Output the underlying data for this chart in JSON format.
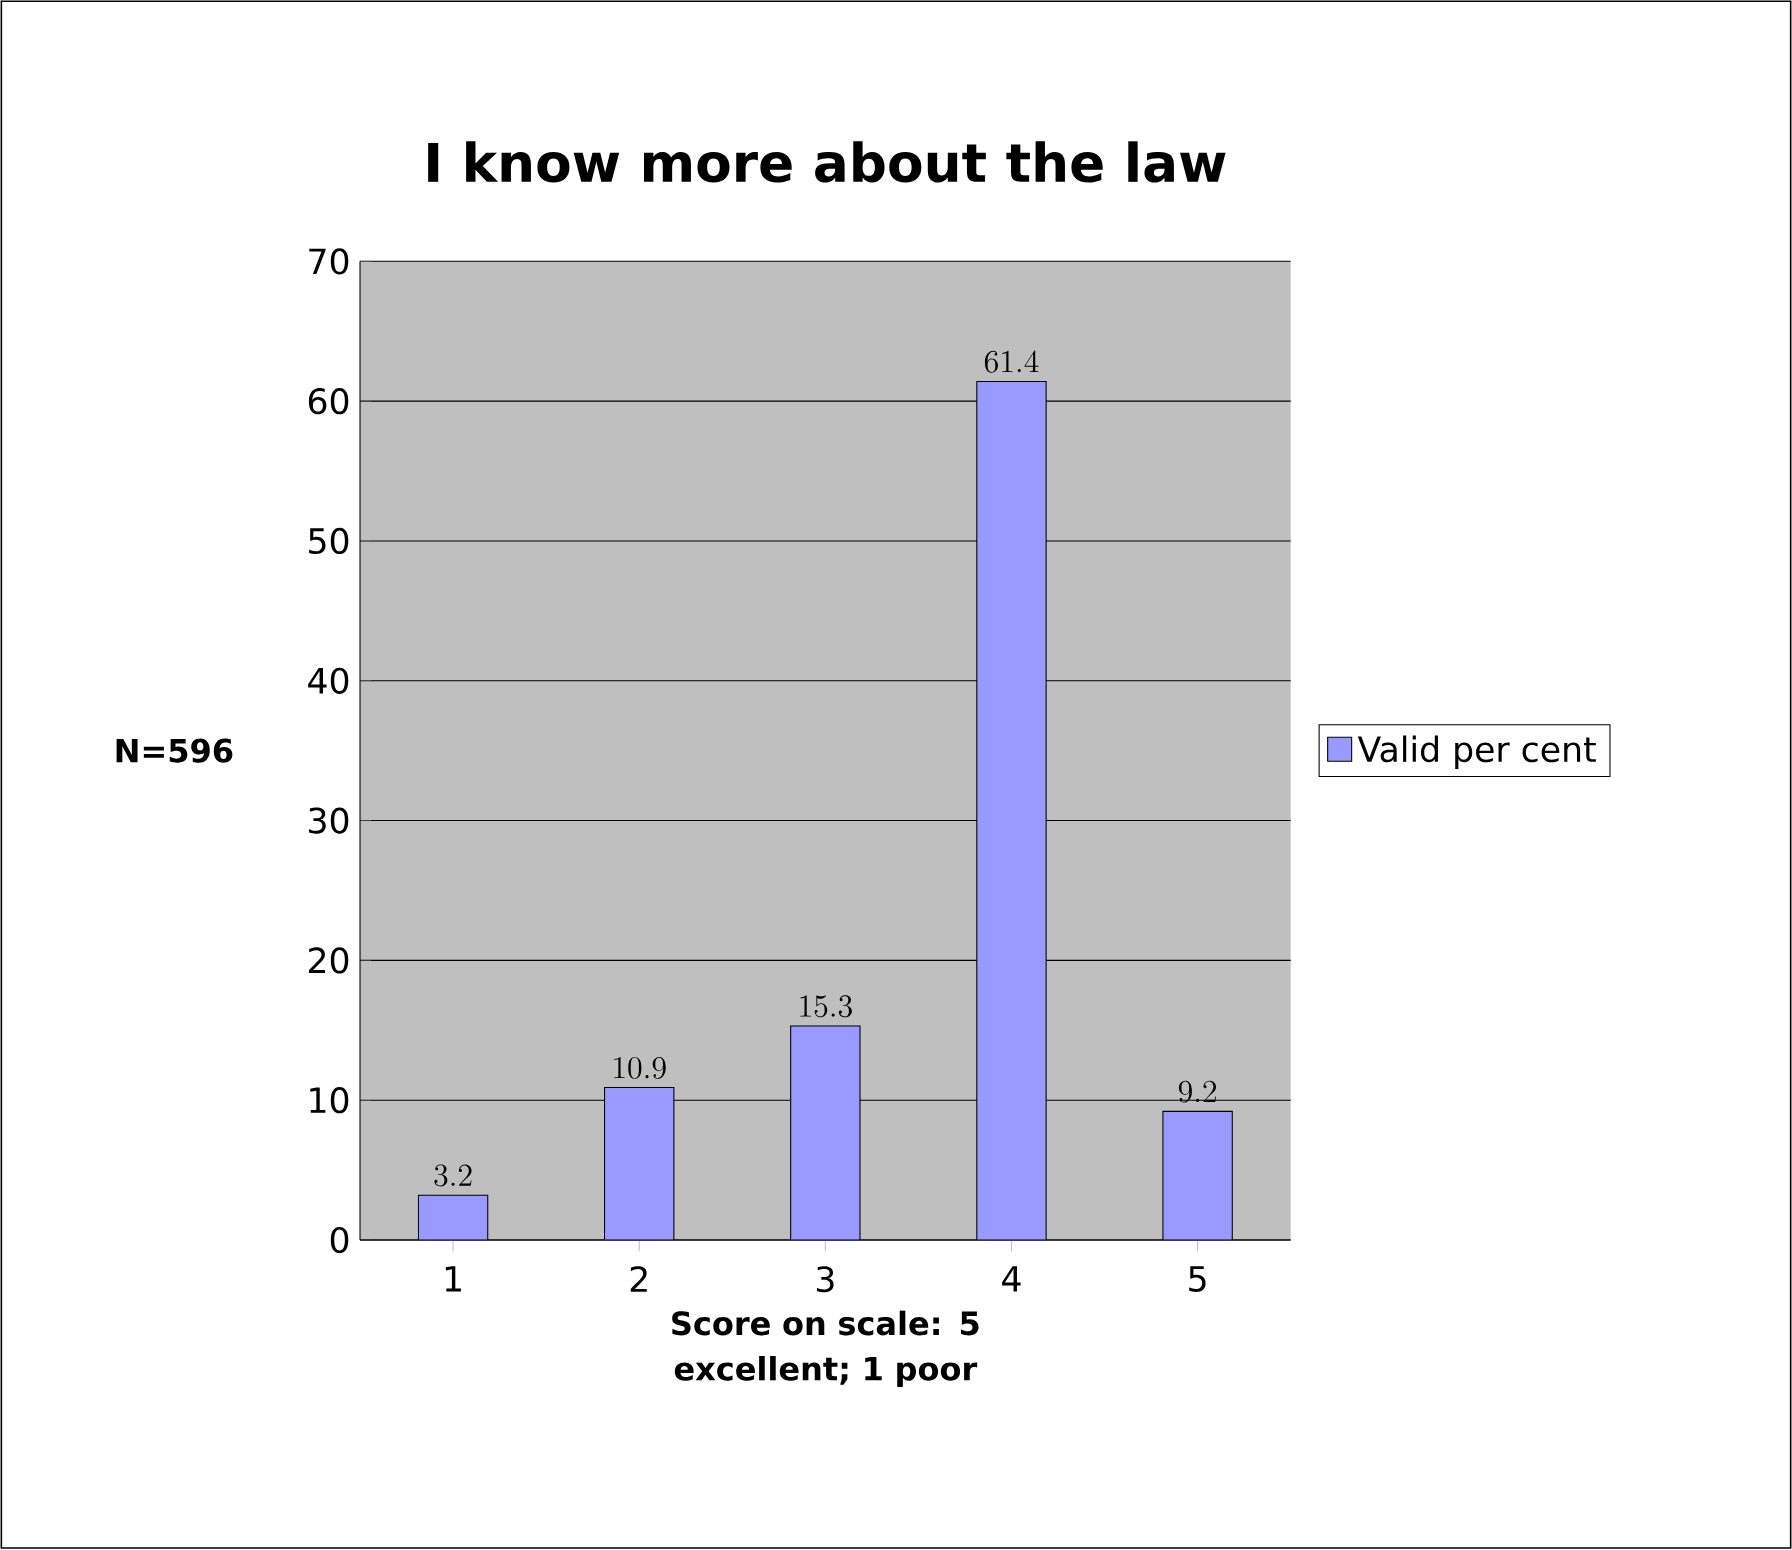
{
  "chart_data": {
    "type": "bar",
    "title": "I know more about the law",
    "xlabel": "Score on scale: 5 excellent; 1 poor",
    "ylabel": "N=596",
    "categories": [
      "1",
      "2",
      "3",
      "4",
      "5"
    ],
    "series": [
      {
        "name": "Valid per cent",
        "color": "#9999ff",
        "values": [
          3.2,
          10.9,
          15.3,
          61.4,
          9.2
        ]
      }
    ],
    "ylim": [
      0,
      70
    ],
    "yticks": [
      0,
      10,
      20,
      30,
      40,
      50,
      60,
      70
    ],
    "grid": "y",
    "legend": "right",
    "data_labels": true
  }
}
